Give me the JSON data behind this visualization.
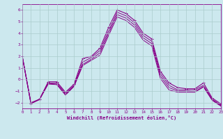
{
  "xlabel": "Windchill (Refroidissement éolien,°C)",
  "background_color": "#cce8ee",
  "grid_color": "#aacccc",
  "line_color": "#880088",
  "x_hours": [
    0,
    1,
    2,
    3,
    4,
    5,
    6,
    7,
    8,
    9,
    10,
    11,
    12,
    13,
    14,
    15,
    16,
    17,
    18,
    19,
    20,
    21,
    22,
    23
  ],
  "series1": [
    2.0,
    -2.1,
    -1.7,
    -0.2,
    -0.2,
    -1.1,
    -0.4,
    1.8,
    2.0,
    2.7,
    4.5,
    6.0,
    5.7,
    5.1,
    4.0,
    3.5,
    0.7,
    -0.3,
    -0.7,
    -0.8,
    -0.8,
    -0.3,
    -1.6,
    -2.1
  ],
  "series2": [
    2.0,
    -2.1,
    -1.7,
    -0.3,
    -0.3,
    -1.2,
    -0.5,
    1.5,
    1.9,
    2.5,
    4.2,
    5.8,
    5.5,
    4.9,
    3.8,
    3.3,
    0.5,
    -0.5,
    -0.9,
    -0.9,
    -0.9,
    -0.5,
    -1.7,
    -2.2
  ],
  "series3": [
    2.0,
    -2.0,
    -1.7,
    -0.35,
    -0.4,
    -1.3,
    -0.55,
    1.3,
    1.75,
    2.3,
    4.0,
    5.6,
    5.3,
    4.7,
    3.6,
    3.1,
    0.3,
    -0.7,
    -1.0,
    -1.0,
    -1.05,
    -0.6,
    -1.75,
    -2.25
  ],
  "series4": [
    2.0,
    -2.05,
    -1.75,
    -0.4,
    -0.45,
    -1.35,
    -0.6,
    1.2,
    1.65,
    2.1,
    3.8,
    5.4,
    5.1,
    4.5,
    3.4,
    2.9,
    0.1,
    -0.9,
    -1.1,
    -1.1,
    -1.1,
    -0.65,
    -1.8,
    -2.3
  ],
  "ylim": [
    -2.5,
    6.5
  ],
  "yticks": [
    -2,
    -1,
    0,
    1,
    2,
    3,
    4,
    5,
    6
  ],
  "xticks": [
    0,
    1,
    2,
    3,
    4,
    5,
    6,
    7,
    8,
    9,
    10,
    11,
    12,
    13,
    14,
    15,
    16,
    17,
    18,
    19,
    20,
    21,
    22,
    23
  ],
  "xlim": [
    0,
    23
  ]
}
